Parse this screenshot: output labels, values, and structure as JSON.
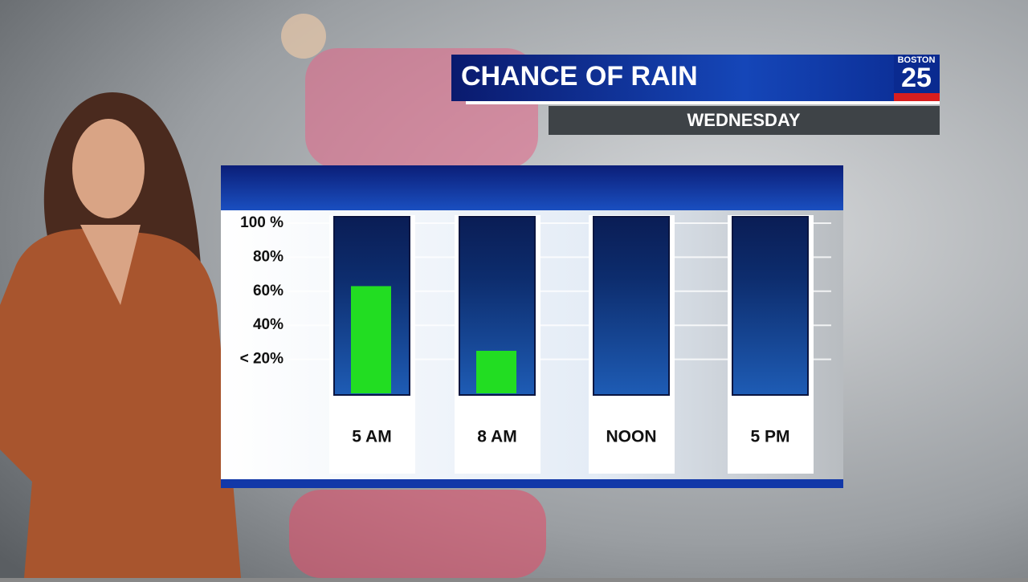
{
  "chart_data": {
    "type": "bar",
    "title": "CHANCE OF RAIN",
    "subtitle": "WEDNESDAY",
    "categories": [
      "5 AM",
      "8 AM",
      "NOON",
      "5 PM"
    ],
    "values": [
      63,
      25,
      0,
      0
    ],
    "color": "#22dd22",
    "ylim": [
      0,
      100
    ],
    "yticks": [
      {
        "value": 20,
        "label": "< 20%"
      },
      {
        "value": 40,
        "label": "40%"
      },
      {
        "value": 60,
        "label": "60%"
      },
      {
        "value": 80,
        "label": "80%"
      },
      {
        "value": 100,
        "label": "100 %"
      }
    ],
    "grid": true
  },
  "logo": {
    "top": "BOSTON",
    "number": "25"
  }
}
